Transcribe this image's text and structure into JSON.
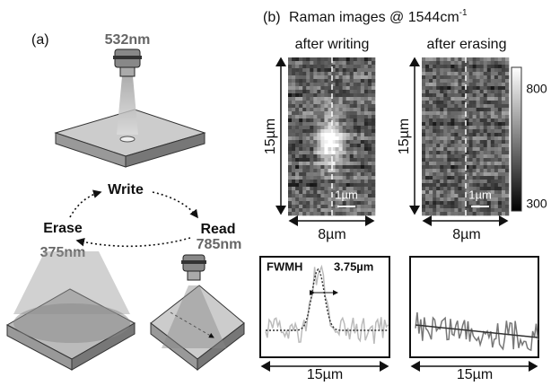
{
  "panel_a": {
    "label": "(a)",
    "write_wavelength": "532nm",
    "write": "Write",
    "erase": "Erase",
    "read": "Read",
    "erase_wavelength": "375nm",
    "read_wavelength": "785nm"
  },
  "panel_b": {
    "label": "(b)",
    "title": "Raman images @ 1544cm",
    "title_superscript": "-1",
    "images": [
      {
        "title": "after writing",
        "height_label": "15µm",
        "width_label": "8µm",
        "scale_bar": "1µm"
      },
      {
        "title": "after erasing",
        "height_label": "15µm",
        "width_label": "8µm",
        "scale_bar": "1µm"
      }
    ],
    "colorbar": {
      "high": "800",
      "low": "300"
    },
    "profiles": [
      {
        "fwhm_label": "FWMH",
        "fwhm_value": "3.75µm",
        "width_label": "15µm"
      },
      {
        "width_label": "15µm"
      }
    ]
  }
}
